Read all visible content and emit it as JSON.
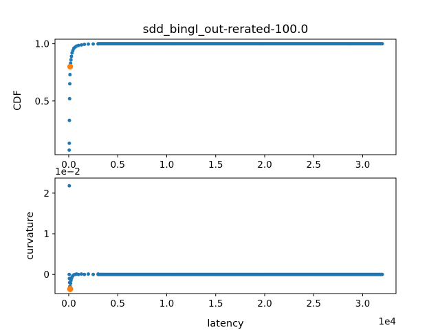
{
  "chart_data": [
    {
      "type": "scatter",
      "title": "sdd_bingI_out-rerated-100.0",
      "xlabel": "",
      "ylabel": "CDF",
      "xlim": [
        -1400,
        33400
      ],
      "ylim": [
        0.03,
        1.04
      ],
      "xticks": [
        0,
        5000,
        10000,
        15000,
        20000,
        25000,
        30000
      ],
      "xtick_labels": [
        "0.0",
        "0.5",
        "1.0",
        "1.5",
        "2.0",
        "2.5",
        "3.0"
      ],
      "yticks": [
        0.5,
        1.0
      ],
      "ytick_labels": [
        "0.5",
        "1.0"
      ],
      "grid": false,
      "series": [
        {
          "color": "#1f77b4",
          "points": [
            [
              50,
              0.07
            ],
            [
              60,
              0.13
            ],
            [
              70,
              0.33
            ],
            [
              90,
              0.52
            ],
            [
              110,
              0.65
            ],
            [
              130,
              0.73
            ],
            [
              160,
              0.79
            ],
            [
              190,
              0.83
            ],
            [
              230,
              0.86
            ],
            [
              280,
              0.89
            ],
            [
              340,
              0.92
            ],
            [
              420,
              0.94
            ],
            [
              520,
              0.96
            ],
            [
              650,
              0.97
            ],
            [
              800,
              0.98
            ],
            [
              1000,
              0.985
            ],
            [
              1300,
              0.99
            ],
            [
              1600,
              0.995
            ],
            [
              2000,
              0.997
            ],
            [
              2500,
              0.998
            ],
            [
              3000,
              0.999
            ]
          ],
          "fill_to": [
            3000,
            32000
          ],
          "fill_y": 1.0
        },
        {
          "color": "#ff7f0e",
          "points": [
            [
              150,
              0.8
            ]
          ]
        }
      ]
    },
    {
      "type": "scatter",
      "title": "",
      "xlabel": "latency",
      "ylabel": "curvature",
      "x_offset_text": "1e4",
      "y_offset_text": "1e−2",
      "xlim": [
        -1400,
        33400
      ],
      "ylim": [
        -0.47,
        2.37
      ],
      "xticks": [
        0,
        5000,
        10000,
        15000,
        20000,
        25000,
        30000
      ],
      "xtick_labels": [
        "0.0",
        "0.5",
        "1.0",
        "1.5",
        "2.0",
        "2.5",
        "3.0"
      ],
      "yticks": [
        0,
        1,
        2
      ],
      "ytick_labels": [
        "0",
        "1",
        "2"
      ],
      "grid": false,
      "series": [
        {
          "color": "#1f77b4",
          "points": [
            [
              60,
              2.18
            ],
            [
              50,
              0.0
            ],
            [
              70,
              -0.1
            ],
            [
              90,
              -0.2
            ],
            [
              110,
              -0.3
            ],
            [
              130,
              -0.36
            ],
            [
              160,
              -0.3
            ],
            [
              190,
              -0.22
            ],
            [
              230,
              -0.15
            ],
            [
              280,
              -0.1
            ],
            [
              340,
              -0.06
            ],
            [
              420,
              -0.03
            ],
            [
              520,
              -0.01
            ],
            [
              650,
              0.0
            ],
            [
              800,
              0.01
            ],
            [
              1000,
              0.0
            ],
            [
              1300,
              0.01
            ],
            [
              1600,
              0.0
            ],
            [
              2000,
              0.01
            ],
            [
              2500,
              0.0
            ],
            [
              3000,
              0.01
            ]
          ],
          "fill_to": [
            3000,
            32000
          ],
          "fill_y": 0.0
        },
        {
          "color": "#ff7f0e",
          "hollow": true,
          "points": [
            [
              150,
              -0.36
            ]
          ]
        }
      ]
    }
  ]
}
